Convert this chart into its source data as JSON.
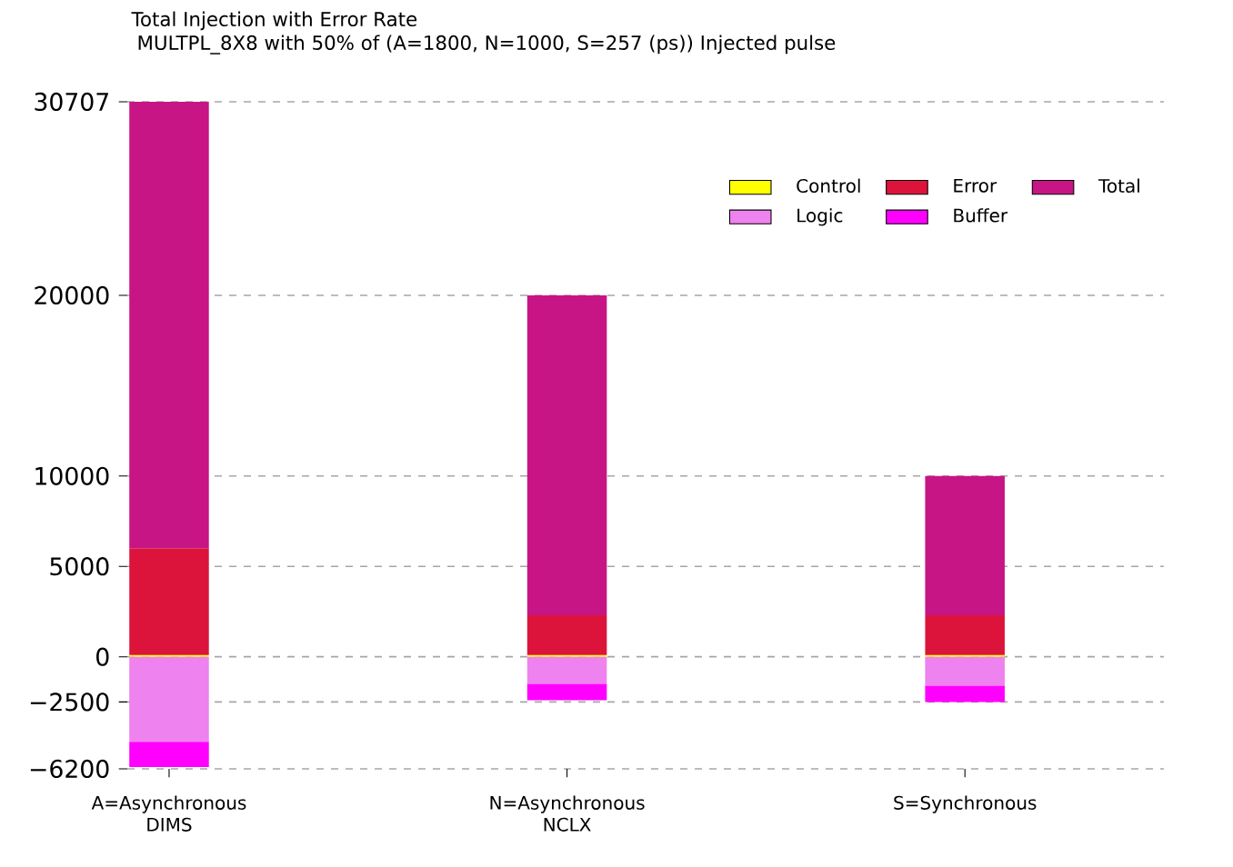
{
  "chart_data": {
    "type": "bar",
    "title": "Total Injection with Error Rate",
    "subtitle": "MULTPL_8X8 with 50% of (A=1800, N=1000, S=257 (ps)) Injected pulse",
    "categories": [
      "A=Asynchronous DIMS",
      "N=Asynchronous NCLX",
      "S=Synchronous"
    ],
    "stacked": true,
    "series": [
      {
        "name": "Control",
        "color": "#ffff00",
        "values": [
          100,
          100,
          100
        ]
      },
      {
        "name": "Error",
        "color": "#dc143c",
        "values": [
          5900,
          2200,
          2200
        ]
      },
      {
        "name": "Total",
        "color": "#c71585",
        "values": [
          24707,
          17700,
          7700
        ]
      },
      {
        "name": "Logic",
        "color": "#ee82ee",
        "values": [
          -4700,
          -1500,
          -1600
        ]
      },
      {
        "name": "Buffer",
        "color": "#ff00ff",
        "values": [
          -1400,
          -900,
          -900
        ]
      }
    ],
    "ylim": [
      -6200,
      30707
    ],
    "yticks": [
      {
        "value": -6200,
        "label": "−6200"
      },
      {
        "value": -2500,
        "label": "−2500"
      },
      0,
      5000,
      10000,
      20000,
      30707
    ],
    "grid": "y",
    "legend": "top right"
  }
}
